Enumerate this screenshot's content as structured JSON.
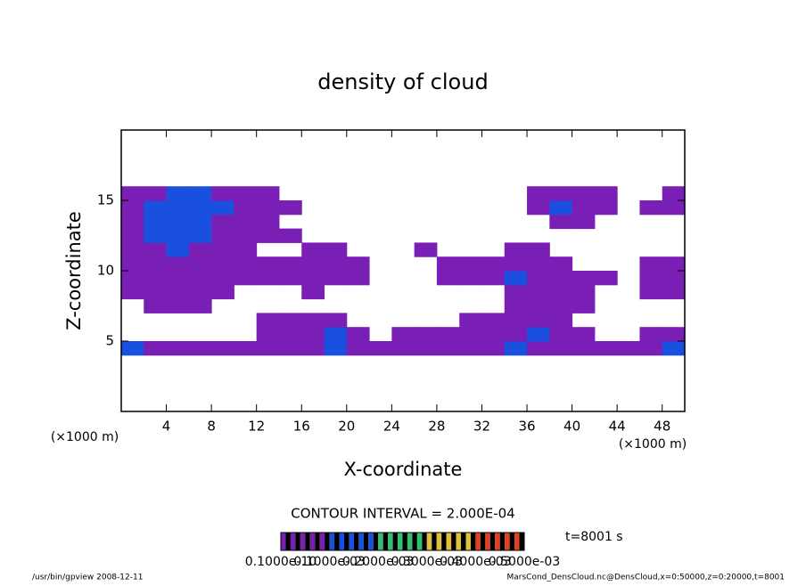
{
  "chart_data": {
    "type": "contour",
    "title": "density of cloud",
    "xlabel": "X-coordinate",
    "ylabel": "Z-coordinate",
    "xunit": "(×1000 m)",
    "yunit": "(×1000 m)",
    "xlim": [
      0,
      50
    ],
    "ylim": [
      0,
      20
    ],
    "xticks": [
      4,
      8,
      12,
      16,
      20,
      24,
      28,
      32,
      36,
      40,
      44,
      48
    ],
    "yticks": [
      5,
      10,
      15
    ],
    "x": [
      1,
      3,
      5,
      7,
      9,
      11,
      13,
      15,
      17,
      19,
      21,
      23,
      25,
      27,
      29,
      31,
      33,
      35,
      37,
      39,
      41,
      43,
      45,
      47,
      49
    ],
    "z": [
      4.5,
      5.5,
      6.5,
      7.5,
      8.5,
      9.5,
      10.5,
      11.5,
      12.5,
      13.5,
      14.5,
      15.5
    ],
    "values": [
      [
        0.00015,
        5e-05,
        5e-05,
        5e-05,
        5e-05,
        5e-05,
        5e-05,
        5e-05,
        5e-05,
        0.00015,
        5e-05,
        5e-05,
        5e-05,
        5e-05,
        5e-05,
        5e-05,
        5e-05,
        0.00015,
        5e-05,
        5e-05,
        5e-05,
        5e-05,
        5e-05,
        5e-05,
        0.00015
      ],
      [
        null,
        null,
        null,
        null,
        null,
        null,
        5e-05,
        5e-05,
        5e-05,
        0.00015,
        5e-05,
        null,
        5e-05,
        5e-05,
        5e-05,
        5e-05,
        5e-05,
        5e-05,
        0.00015,
        5e-05,
        5e-05,
        null,
        null,
        5e-05,
        5e-05
      ],
      [
        null,
        null,
        null,
        null,
        null,
        null,
        5e-05,
        5e-05,
        5e-05,
        5e-05,
        null,
        null,
        null,
        null,
        null,
        5e-05,
        5e-05,
        5e-05,
        5e-05,
        5e-05,
        null,
        null,
        null,
        null,
        null
      ],
      [
        null,
        5e-05,
        5e-05,
        5e-05,
        null,
        null,
        null,
        null,
        null,
        null,
        null,
        null,
        null,
        null,
        null,
        null,
        null,
        5e-05,
        5e-05,
        5e-05,
        5e-05,
        null,
        null,
        null,
        null
      ],
      [
        5e-05,
        5e-05,
        5e-05,
        5e-05,
        5e-05,
        null,
        null,
        null,
        5e-05,
        null,
        null,
        null,
        null,
        null,
        null,
        null,
        null,
        5e-05,
        5e-05,
        5e-05,
        5e-05,
        null,
        null,
        5e-05,
        5e-05
      ],
      [
        5e-05,
        5e-05,
        5e-05,
        5e-05,
        5e-05,
        5e-05,
        5e-05,
        5e-05,
        5e-05,
        5e-05,
        5e-05,
        null,
        null,
        null,
        5e-05,
        5e-05,
        5e-05,
        0.00015,
        5e-05,
        5e-05,
        5e-05,
        5e-05,
        null,
        5e-05,
        5e-05
      ],
      [
        5e-05,
        5e-05,
        5e-05,
        5e-05,
        5e-05,
        5e-05,
        5e-05,
        5e-05,
        5e-05,
        5e-05,
        5e-05,
        null,
        null,
        null,
        5e-05,
        5e-05,
        5e-05,
        5e-05,
        5e-05,
        5e-05,
        null,
        null,
        null,
        5e-05,
        5e-05
      ],
      [
        5e-05,
        5e-05,
        0.00015,
        5e-05,
        5e-05,
        5e-05,
        null,
        null,
        5e-05,
        5e-05,
        null,
        null,
        null,
        5e-05,
        null,
        null,
        null,
        5e-05,
        5e-05,
        null,
        null,
        null,
        null,
        null,
        null
      ],
      [
        5e-05,
        0.00015,
        0.00015,
        0.00015,
        5e-05,
        5e-05,
        5e-05,
        5e-05,
        null,
        null,
        null,
        null,
        null,
        null,
        null,
        null,
        null,
        null,
        null,
        null,
        null,
        null,
        null,
        null,
        null
      ],
      [
        5e-05,
        0.00015,
        0.00015,
        0.00015,
        5e-05,
        5e-05,
        5e-05,
        null,
        null,
        null,
        null,
        null,
        null,
        null,
        null,
        null,
        null,
        null,
        null,
        5e-05,
        5e-05,
        null,
        null,
        null,
        null
      ],
      [
        5e-05,
        0.00015,
        0.00015,
        0.00015,
        0.00015,
        5e-05,
        5e-05,
        5e-05,
        null,
        null,
        null,
        null,
        null,
        null,
        null,
        null,
        null,
        null,
        5e-05,
        0.00015,
        5e-05,
        5e-05,
        null,
        5e-05,
        5e-05
      ],
      [
        5e-05,
        5e-05,
        0.00015,
        0.00015,
        5e-05,
        5e-05,
        5e-05,
        null,
        null,
        null,
        null,
        null,
        null,
        null,
        null,
        null,
        null,
        null,
        5e-05,
        5e-05,
        5e-05,
        5e-05,
        null,
        null,
        5e-05
      ]
    ],
    "contour_interval": "CONTOUR INTERVAL = 2.000E-04",
    "time": "t=8001 s",
    "colorbar": {
      "levels": [
        {
          "value": 1e-11,
          "label": "0.1000e-10"
        },
        {
          "value": 0.0001,
          "label": "0.1000e-03"
        },
        {
          "value": 0.0002,
          "label": "0.2000e-03"
        },
        {
          "value": 0.0003,
          "label": "0.3000e-03"
        },
        {
          "value": 0.0004,
          "label": "0.4000e-03"
        },
        {
          "value": 0.0005,
          "label": "0.5000e-03"
        }
      ],
      "colors": [
        "#7a1fb5",
        "#1a50e0",
        "#30c070",
        "#e0c040",
        "#e04020"
      ]
    },
    "footer_left": "/usr/bin/gpview  2008-12-11",
    "footer_right": "MarsCond_DensCloud.nc@DensCloud,x=0:50000,z=0:20000,t=8001"
  }
}
